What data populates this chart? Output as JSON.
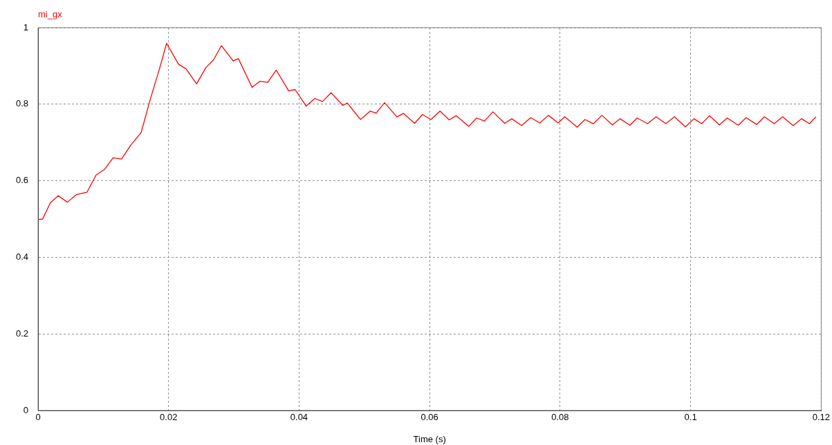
{
  "chart_data": {
    "type": "line",
    "xlabel": "Time (s)",
    "xlim": [
      0,
      0.12
    ],
    "xticks": [
      0,
      0.02,
      0.04,
      0.06,
      0.08,
      0.1,
      0.12
    ],
    "ylim": [
      0,
      1
    ],
    "yticks": [
      0,
      0.2,
      0.4,
      0.6,
      0.8,
      1
    ],
    "grid": true,
    "legend": "top left",
    "marker": "none",
    "line_style": "solid",
    "series": [
      {
        "name": "mi_gx",
        "color": "#ff0000",
        "x": [
          0,
          0.0007,
          0.0019,
          0.0031,
          0.0045,
          0.0059,
          0.0075,
          0.0089,
          0.0102,
          0.0115,
          0.0128,
          0.0142,
          0.0158,
          0.0172,
          0.0186,
          0.0197,
          0.0215,
          0.0227,
          0.0243,
          0.0257,
          0.0269,
          0.0281,
          0.0299,
          0.0307,
          0.0328,
          0.034,
          0.0352,
          0.0365,
          0.0384,
          0.0394,
          0.0411,
          0.0424,
          0.0436,
          0.0449,
          0.0467,
          0.0474,
          0.0494,
          0.0509,
          0.0518,
          0.0531,
          0.055,
          0.056,
          0.0577,
          0.0589,
          0.0602,
          0.0616,
          0.063,
          0.0641,
          0.066,
          0.0672,
          0.0684,
          0.0697,
          0.0715,
          0.0726,
          0.0741,
          0.0755,
          0.0769,
          0.0782,
          0.0797,
          0.0807,
          0.0817,
          0.0826,
          0.0838,
          0.0851,
          0.0864,
          0.088,
          0.0892,
          0.0907,
          0.0918,
          0.0934,
          0.0947,
          0.0962,
          0.0975,
          0.0992,
          0.1005,
          0.1017,
          0.1029,
          0.1044,
          0.1056,
          0.1073,
          0.1085,
          0.1101,
          0.1113,
          0.1128,
          0.1141,
          0.1157,
          0.117,
          0.1182,
          0.1192
        ],
        "values": [
          0.499,
          0.5,
          0.543,
          0.561,
          0.544,
          0.564,
          0.57,
          0.615,
          0.63,
          0.66,
          0.657,
          0.693,
          0.726,
          0.813,
          0.892,
          0.959,
          0.905,
          0.892,
          0.853,
          0.895,
          0.916,
          0.953,
          0.913,
          0.919,
          0.844,
          0.86,
          0.857,
          0.889,
          0.835,
          0.838,
          0.795,
          0.815,
          0.807,
          0.83,
          0.797,
          0.803,
          0.76,
          0.782,
          0.777,
          0.804,
          0.767,
          0.776,
          0.75,
          0.773,
          0.76,
          0.782,
          0.759,
          0.77,
          0.742,
          0.764,
          0.756,
          0.78,
          0.75,
          0.762,
          0.744,
          0.765,
          0.751,
          0.771,
          0.751,
          0.767,
          0.753,
          0.74,
          0.76,
          0.749,
          0.771,
          0.746,
          0.762,
          0.745,
          0.764,
          0.749,
          0.767,
          0.749,
          0.767,
          0.741,
          0.762,
          0.749,
          0.77,
          0.746,
          0.764,
          0.745,
          0.765,
          0.747,
          0.767,
          0.749,
          0.767,
          0.744,
          0.762,
          0.749,
          0.767
        ]
      }
    ]
  }
}
